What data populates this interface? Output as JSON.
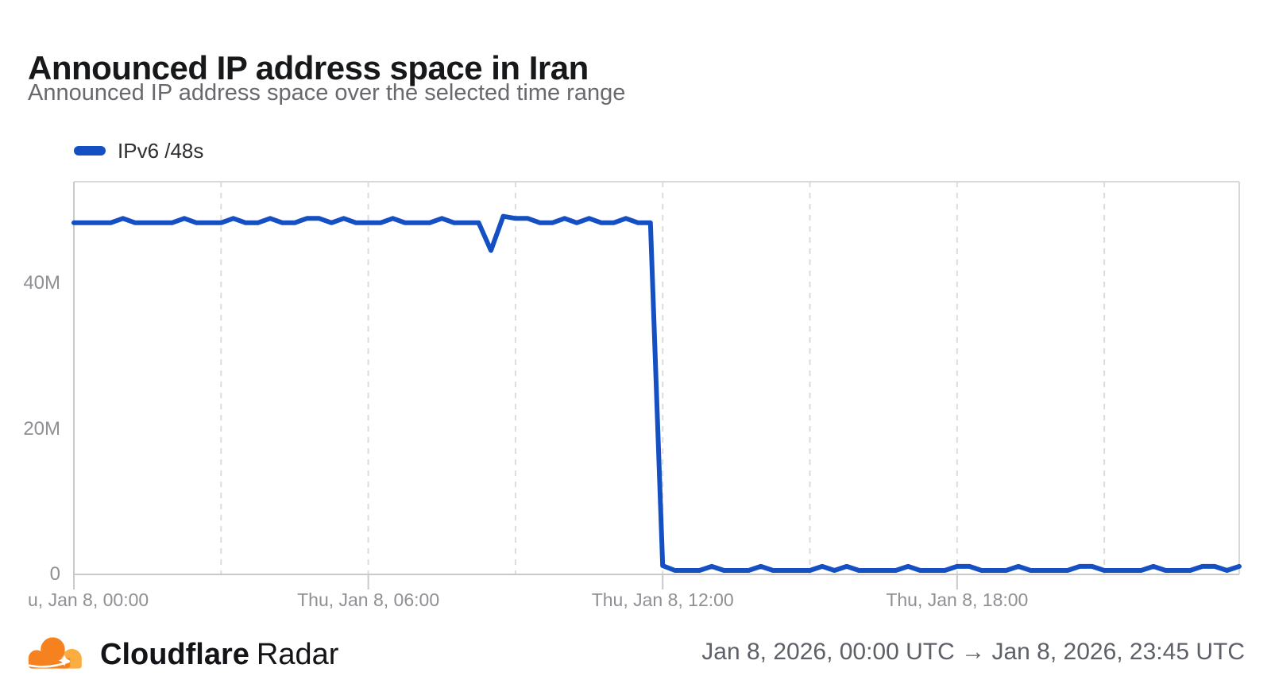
{
  "header": {
    "title": "Announced IP address space in Iran",
    "subtitle": "Announced IP address space over the selected time range"
  },
  "legend": {
    "items": [
      {
        "label": "IPv6 /48s",
        "color": "#1450C4"
      }
    ]
  },
  "footer": {
    "brand_bold": "Cloudflare",
    "brand_regular": "Radar",
    "time_range": "Jan 8, 2026, 00:00 UTC → Jan 8, 2026, 23:45 UTC",
    "logo_colors": {
      "cloud_orange": "#F6821F",
      "cloud_light_orange": "#FBAD41"
    }
  },
  "colors": {
    "line_blue": "#1450C4",
    "gridline": "#dcdcdc",
    "plot_border": "#d8d8d8",
    "axis_line": "#c9c9c9",
    "axis_text": "#8f8f94"
  },
  "chart_data": {
    "type": "line",
    "title": "Announced IP address space in Iran",
    "xlabel": "",
    "ylabel": "",
    "x_unit": "hours since Thu, Jan 8, 2026 00:00 UTC (15-minute samples)",
    "y_unit": "announced IPv6 /48s (millions)",
    "x_range_hours": [
      0,
      23.75
    ],
    "y_axis_top_value": 54,
    "grid": "vertical-dashed",
    "gridlines_hours": [
      3,
      6,
      9,
      12,
      15,
      18,
      21
    ],
    "legend_position": "top-left",
    "y_ticks": [
      {
        "value": 0,
        "label": "0"
      },
      {
        "value": 20,
        "label": "20M"
      },
      {
        "value": 40,
        "label": "40M"
      }
    ],
    "x_ticks": [
      {
        "hours": 0,
        "label": "u, Jan 8, 00:00",
        "truncated": true
      },
      {
        "hours": 6,
        "label": "Thu, Jan 8, 06:00"
      },
      {
        "hours": 12,
        "label": "Thu, Jan 8, 12:00"
      },
      {
        "hours": 18,
        "label": "Thu, Jan 8, 18:00"
      }
    ],
    "series": [
      {
        "name": "IPv6 /48s",
        "color": "#1450C4",
        "points": [
          [
            0,
            48.3
          ],
          [
            0.25,
            48.3
          ],
          [
            0.5,
            48.3
          ],
          [
            0.75,
            48.3
          ],
          [
            1,
            48.9
          ],
          [
            1.25,
            48.3
          ],
          [
            1.5,
            48.3
          ],
          [
            1.75,
            48.3
          ],
          [
            2,
            48.3
          ],
          [
            2.25,
            48.9
          ],
          [
            2.5,
            48.3
          ],
          [
            2.75,
            48.3
          ],
          [
            3,
            48.3
          ],
          [
            3.25,
            48.9
          ],
          [
            3.5,
            48.3
          ],
          [
            3.75,
            48.3
          ],
          [
            4,
            48.9
          ],
          [
            4.25,
            48.3
          ],
          [
            4.5,
            48.3
          ],
          [
            4.75,
            48.9
          ],
          [
            5,
            48.9
          ],
          [
            5.25,
            48.3
          ],
          [
            5.5,
            48.9
          ],
          [
            5.75,
            48.3
          ],
          [
            6,
            48.3
          ],
          [
            6.25,
            48.3
          ],
          [
            6.5,
            48.9
          ],
          [
            6.75,
            48.3
          ],
          [
            7,
            48.3
          ],
          [
            7.25,
            48.3
          ],
          [
            7.5,
            48.9
          ],
          [
            7.75,
            48.3
          ],
          [
            8,
            48.3
          ],
          [
            8.25,
            48.3
          ],
          [
            8.5,
            44.5
          ],
          [
            8.75,
            49.2
          ],
          [
            9,
            48.9
          ],
          [
            9.25,
            48.9
          ],
          [
            9.5,
            48.3
          ],
          [
            9.75,
            48.3
          ],
          [
            10,
            48.9
          ],
          [
            10.25,
            48.3
          ],
          [
            10.5,
            48.9
          ],
          [
            10.75,
            48.3
          ],
          [
            11,
            48.3
          ],
          [
            11.25,
            48.9
          ],
          [
            11.5,
            48.3
          ],
          [
            11.75,
            48.3
          ],
          [
            12,
            1.2
          ],
          [
            12.25,
            0.55
          ],
          [
            12.5,
            0.55
          ],
          [
            12.75,
            0.55
          ],
          [
            13,
            1.1
          ],
          [
            13.25,
            0.55
          ],
          [
            13.5,
            0.55
          ],
          [
            13.75,
            0.55
          ],
          [
            14,
            1.1
          ],
          [
            14.25,
            0.55
          ],
          [
            14.5,
            0.55
          ],
          [
            14.75,
            0.55
          ],
          [
            15,
            0.55
          ],
          [
            15.25,
            1.1
          ],
          [
            15.5,
            0.55
          ],
          [
            15.75,
            1.1
          ],
          [
            16,
            0.55
          ],
          [
            16.25,
            0.55
          ],
          [
            16.5,
            0.55
          ],
          [
            16.75,
            0.55
          ],
          [
            17,
            1.1
          ],
          [
            17.25,
            0.55
          ],
          [
            17.5,
            0.55
          ],
          [
            17.75,
            0.55
          ],
          [
            18,
            1.1
          ],
          [
            18.25,
            1.1
          ],
          [
            18.5,
            0.55
          ],
          [
            18.75,
            0.55
          ],
          [
            19,
            0.55
          ],
          [
            19.25,
            1.1
          ],
          [
            19.5,
            0.55
          ],
          [
            19.75,
            0.55
          ],
          [
            20,
            0.55
          ],
          [
            20.25,
            0.55
          ],
          [
            20.5,
            1.1
          ],
          [
            20.75,
            1.1
          ],
          [
            21,
            0.55
          ],
          [
            21.25,
            0.55
          ],
          [
            21.5,
            0.55
          ],
          [
            21.75,
            0.55
          ],
          [
            22,
            1.1
          ],
          [
            22.25,
            0.55
          ],
          [
            22.5,
            0.55
          ],
          [
            22.75,
            0.55
          ],
          [
            23,
            1.1
          ],
          [
            23.25,
            1.1
          ],
          [
            23.5,
            0.55
          ],
          [
            23.75,
            1.1
          ]
        ]
      }
    ]
  }
}
